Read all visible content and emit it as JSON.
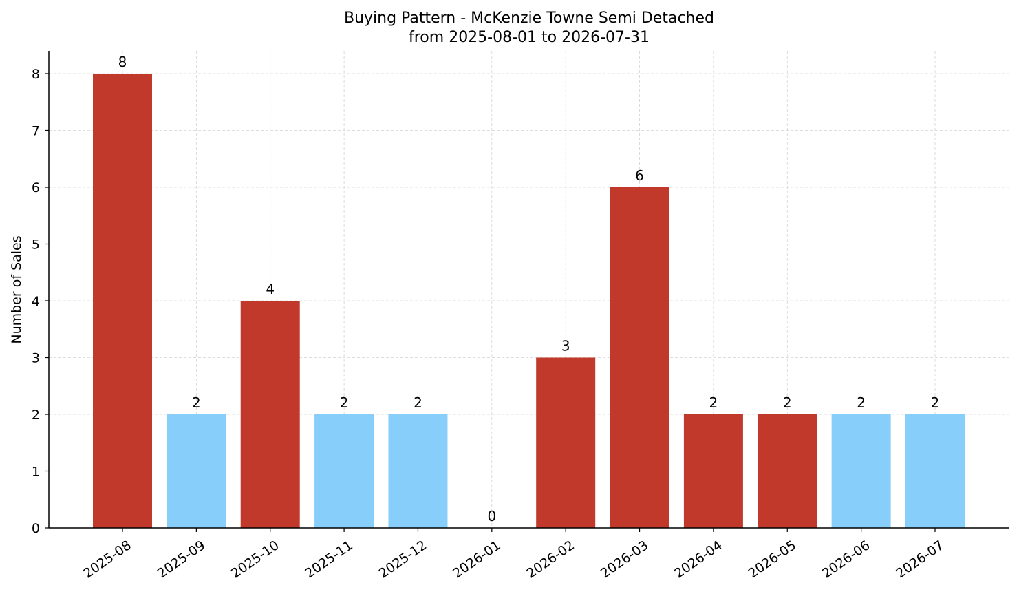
{
  "chart_data": {
    "type": "bar",
    "title": "Buying Pattern - McKenzie Towne Semi Detached",
    "subtitle": "from 2025-08-01 to 2026-07-31",
    "xlabel": "",
    "ylabel": "Number of Sales",
    "ylim": [
      0,
      8.4
    ],
    "yticks": [
      0,
      1,
      2,
      3,
      4,
      5,
      6,
      7,
      8
    ],
    "grid": true,
    "categories": [
      "2025-08",
      "2025-09",
      "2025-10",
      "2025-11",
      "2025-12",
      "2026-01",
      "2026-02",
      "2026-03",
      "2026-04",
      "2026-05",
      "2026-06",
      "2026-07"
    ],
    "values": [
      8,
      2,
      4,
      2,
      2,
      0,
      3,
      6,
      2,
      2,
      2,
      2
    ],
    "bar_colors": [
      "#c0392b",
      "#87cefa",
      "#c0392b",
      "#87cefa",
      "#87cefa",
      "#87cefa",
      "#c0392b",
      "#c0392b",
      "#c0392b",
      "#c0392b",
      "#87cefa",
      "#87cefa"
    ]
  }
}
